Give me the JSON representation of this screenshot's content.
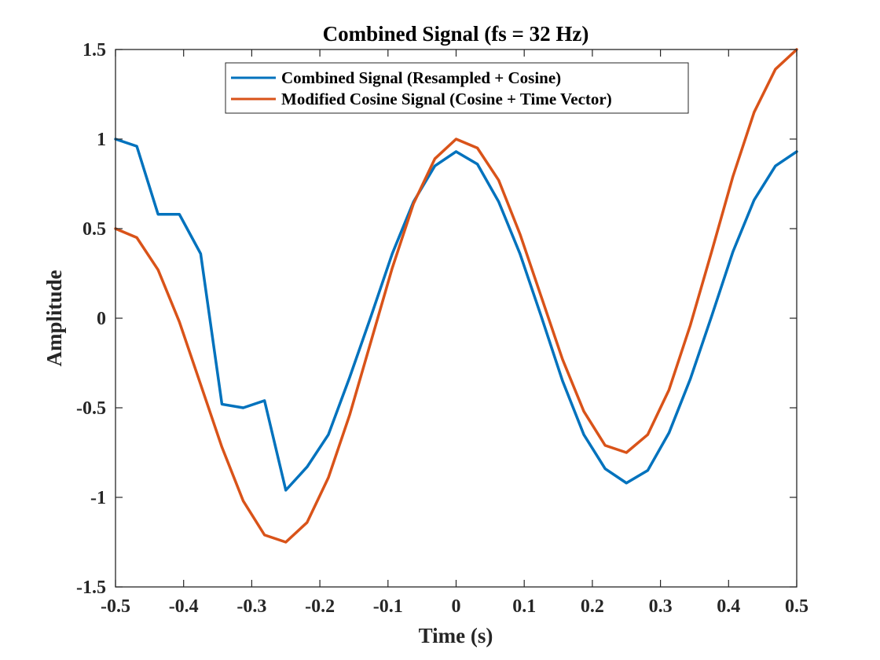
{
  "chart_data": {
    "type": "line",
    "title": "Combined Signal (fs = 32 Hz)",
    "xlabel": "Time (s)",
    "ylabel": "Amplitude",
    "xlim": [
      -0.5,
      0.5
    ],
    "ylim": [
      -1.5,
      1.5
    ],
    "xticks": [
      -0.5,
      -0.4,
      -0.3,
      -0.2,
      -0.1,
      0,
      0.1,
      0.2,
      0.3,
      0.4,
      0.5
    ],
    "xtick_labels": [
      "-0.5",
      "-0.4",
      "-0.3",
      "-0.2",
      "-0.1",
      "0",
      "0.1",
      "0.2",
      "0.3",
      "0.4",
      "0.5"
    ],
    "yticks": [
      -1.5,
      -1,
      -0.5,
      0,
      0.5,
      1,
      1.5
    ],
    "ytick_labels": [
      "-1.5",
      "-1",
      "-0.5",
      "0",
      "0.5",
      "1",
      "1.5"
    ],
    "grid": false,
    "legend_position": "top-center",
    "x": [
      -0.5,
      -0.46875,
      -0.4375,
      -0.40625,
      -0.375,
      -0.34375,
      -0.3125,
      -0.28125,
      -0.25,
      -0.21875,
      -0.1875,
      -0.15625,
      -0.125,
      -0.09375,
      -0.0625,
      -0.03125,
      0,
      0.03125,
      0.0625,
      0.09375,
      0.125,
      0.15625,
      0.1875,
      0.21875,
      0.25,
      0.28125,
      0.3125,
      0.34375,
      0.375,
      0.40625,
      0.4375,
      0.46875,
      0.5
    ],
    "series": [
      {
        "name": "Combined Signal (Resampled + Cosine)",
        "color": "#0072BD",
        "values": [
          1.0,
          0.96,
          0.58,
          0.58,
          0.36,
          -0.48,
          -0.5,
          -0.46,
          -0.96,
          -0.83,
          -0.65,
          -0.33,
          0.01,
          0.36,
          0.65,
          0.85,
          0.93,
          0.86,
          0.65,
          0.36,
          0.01,
          -0.35,
          -0.65,
          -0.84,
          -0.92,
          -0.85,
          -0.64,
          -0.34,
          0.01,
          0.37,
          0.66,
          0.85,
          0.93
        ]
      },
      {
        "name": "Modified Cosine Signal (Cosine + Time Vector)",
        "color": "#D95319",
        "values": [
          0.5,
          0.45,
          0.27,
          -0.02,
          -0.37,
          -0.72,
          -1.02,
          -1.21,
          -1.25,
          -1.14,
          -0.89,
          -0.54,
          -0.13,
          0.28,
          0.64,
          0.89,
          1.0,
          0.95,
          0.77,
          0.47,
          0.12,
          -0.23,
          -0.52,
          -0.71,
          -0.75,
          -0.65,
          -0.4,
          -0.04,
          0.37,
          0.79,
          1.15,
          1.39,
          1.5
        ]
      }
    ]
  }
}
